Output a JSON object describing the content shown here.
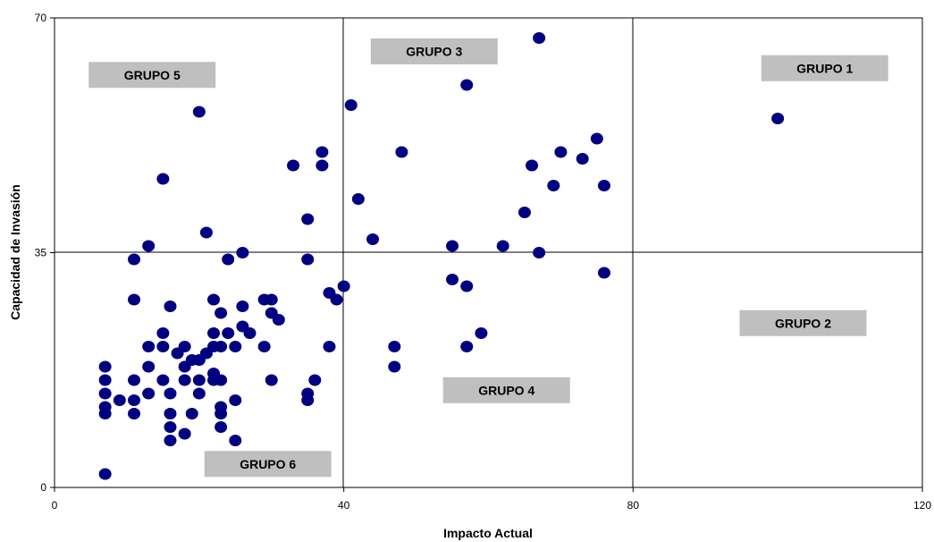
{
  "chart_data": {
    "type": "scatter",
    "xlabel": "Impacto Actual",
    "ylabel": "Capacidad de Invasión",
    "xlim": [
      0,
      120
    ],
    "ylim": [
      0,
      70
    ],
    "xticks": [
      0,
      40,
      80,
      120
    ],
    "yticks": [
      0,
      35,
      70
    ],
    "xtick_labels": [
      "0",
      "40",
      "80",
      "120"
    ],
    "ytick_labels": [
      "0",
      "35",
      "70"
    ],
    "grid": "quadrant lines at x=40, x=80, y=35",
    "dot_color": "#000080",
    "group_color": "#bfbfbf",
    "groups": [
      {
        "label": "GRUPO 5",
        "x": 13.5,
        "y": 61.5
      },
      {
        "label": "GRUPO 3",
        "x": 52.5,
        "y": 65.0
      },
      {
        "label": "GRUPO 1",
        "x": 106.5,
        "y": 62.5
      },
      {
        "label": "GRUPO 2",
        "x": 103.5,
        "y": 24.5
      },
      {
        "label": "GRUPO 4",
        "x": 62.5,
        "y": 14.5
      },
      {
        "label": "GRUPO 6",
        "x": 29.5,
        "y": 3.5
      }
    ],
    "series": [
      {
        "points": [
          [
            7,
            18
          ],
          [
            7,
            16
          ],
          [
            7,
            14
          ],
          [
            7,
            12
          ],
          [
            7,
            11
          ],
          [
            7,
            2
          ],
          [
            9,
            13
          ],
          [
            11,
            34
          ],
          [
            11,
            28
          ],
          [
            11,
            16
          ],
          [
            11,
            13
          ],
          [
            11,
            11
          ],
          [
            13,
            36
          ],
          [
            13,
            21
          ],
          [
            13,
            18
          ],
          [
            13,
            14
          ],
          [
            15,
            46
          ],
          [
            15,
            23
          ],
          [
            15,
            21
          ],
          [
            15,
            16
          ],
          [
            16,
            27
          ],
          [
            16,
            14
          ],
          [
            16,
            11
          ],
          [
            16,
            9
          ],
          [
            16,
            7
          ],
          [
            17,
            20
          ],
          [
            18,
            21
          ],
          [
            18,
            18
          ],
          [
            18,
            16
          ],
          [
            18,
            8
          ],
          [
            19,
            19
          ],
          [
            19,
            11
          ],
          [
            20,
            56
          ],
          [
            20,
            19
          ],
          [
            20,
            16
          ],
          [
            20,
            14
          ],
          [
            21,
            38
          ],
          [
            21,
            20
          ],
          [
            22,
            28
          ],
          [
            22,
            23
          ],
          [
            22,
            21
          ],
          [
            22,
            17
          ],
          [
            22,
            16
          ],
          [
            23,
            26
          ],
          [
            23,
            21
          ],
          [
            23,
            16
          ],
          [
            23,
            12
          ],
          [
            23,
            11
          ],
          [
            23,
            9
          ],
          [
            24,
            34
          ],
          [
            24,
            23
          ],
          [
            25,
            21
          ],
          [
            25,
            13
          ],
          [
            25,
            7
          ],
          [
            26,
            35
          ],
          [
            26,
            27
          ],
          [
            26,
            24
          ],
          [
            27,
            23
          ],
          [
            29,
            28
          ],
          [
            29,
            21
          ],
          [
            30,
            28
          ],
          [
            30,
            26
          ],
          [
            30,
            16
          ],
          [
            31,
            25
          ],
          [
            33,
            48
          ],
          [
            35,
            40
          ],
          [
            35,
            34
          ],
          [
            35,
            14
          ],
          [
            35,
            13
          ],
          [
            36,
            16
          ],
          [
            37,
            50
          ],
          [
            37,
            48
          ],
          [
            38,
            29
          ],
          [
            38,
            21
          ],
          [
            39,
            28
          ],
          [
            40,
            30
          ],
          [
            41,
            57
          ],
          [
            42,
            43
          ],
          [
            44,
            37
          ],
          [
            47,
            21
          ],
          [
            47,
            18
          ],
          [
            48,
            50
          ],
          [
            55,
            36
          ],
          [
            55,
            31
          ],
          [
            57,
            60
          ],
          [
            57,
            30
          ],
          [
            57,
            21
          ],
          [
            59,
            23
          ],
          [
            62,
            36
          ],
          [
            65,
            41
          ],
          [
            66,
            48
          ],
          [
            67,
            67
          ],
          [
            67,
            35
          ],
          [
            69,
            45
          ],
          [
            70,
            50
          ],
          [
            73,
            49
          ],
          [
            75,
            52
          ],
          [
            76,
            45
          ],
          [
            76,
            32
          ],
          [
            100,
            55
          ]
        ]
      }
    ]
  }
}
